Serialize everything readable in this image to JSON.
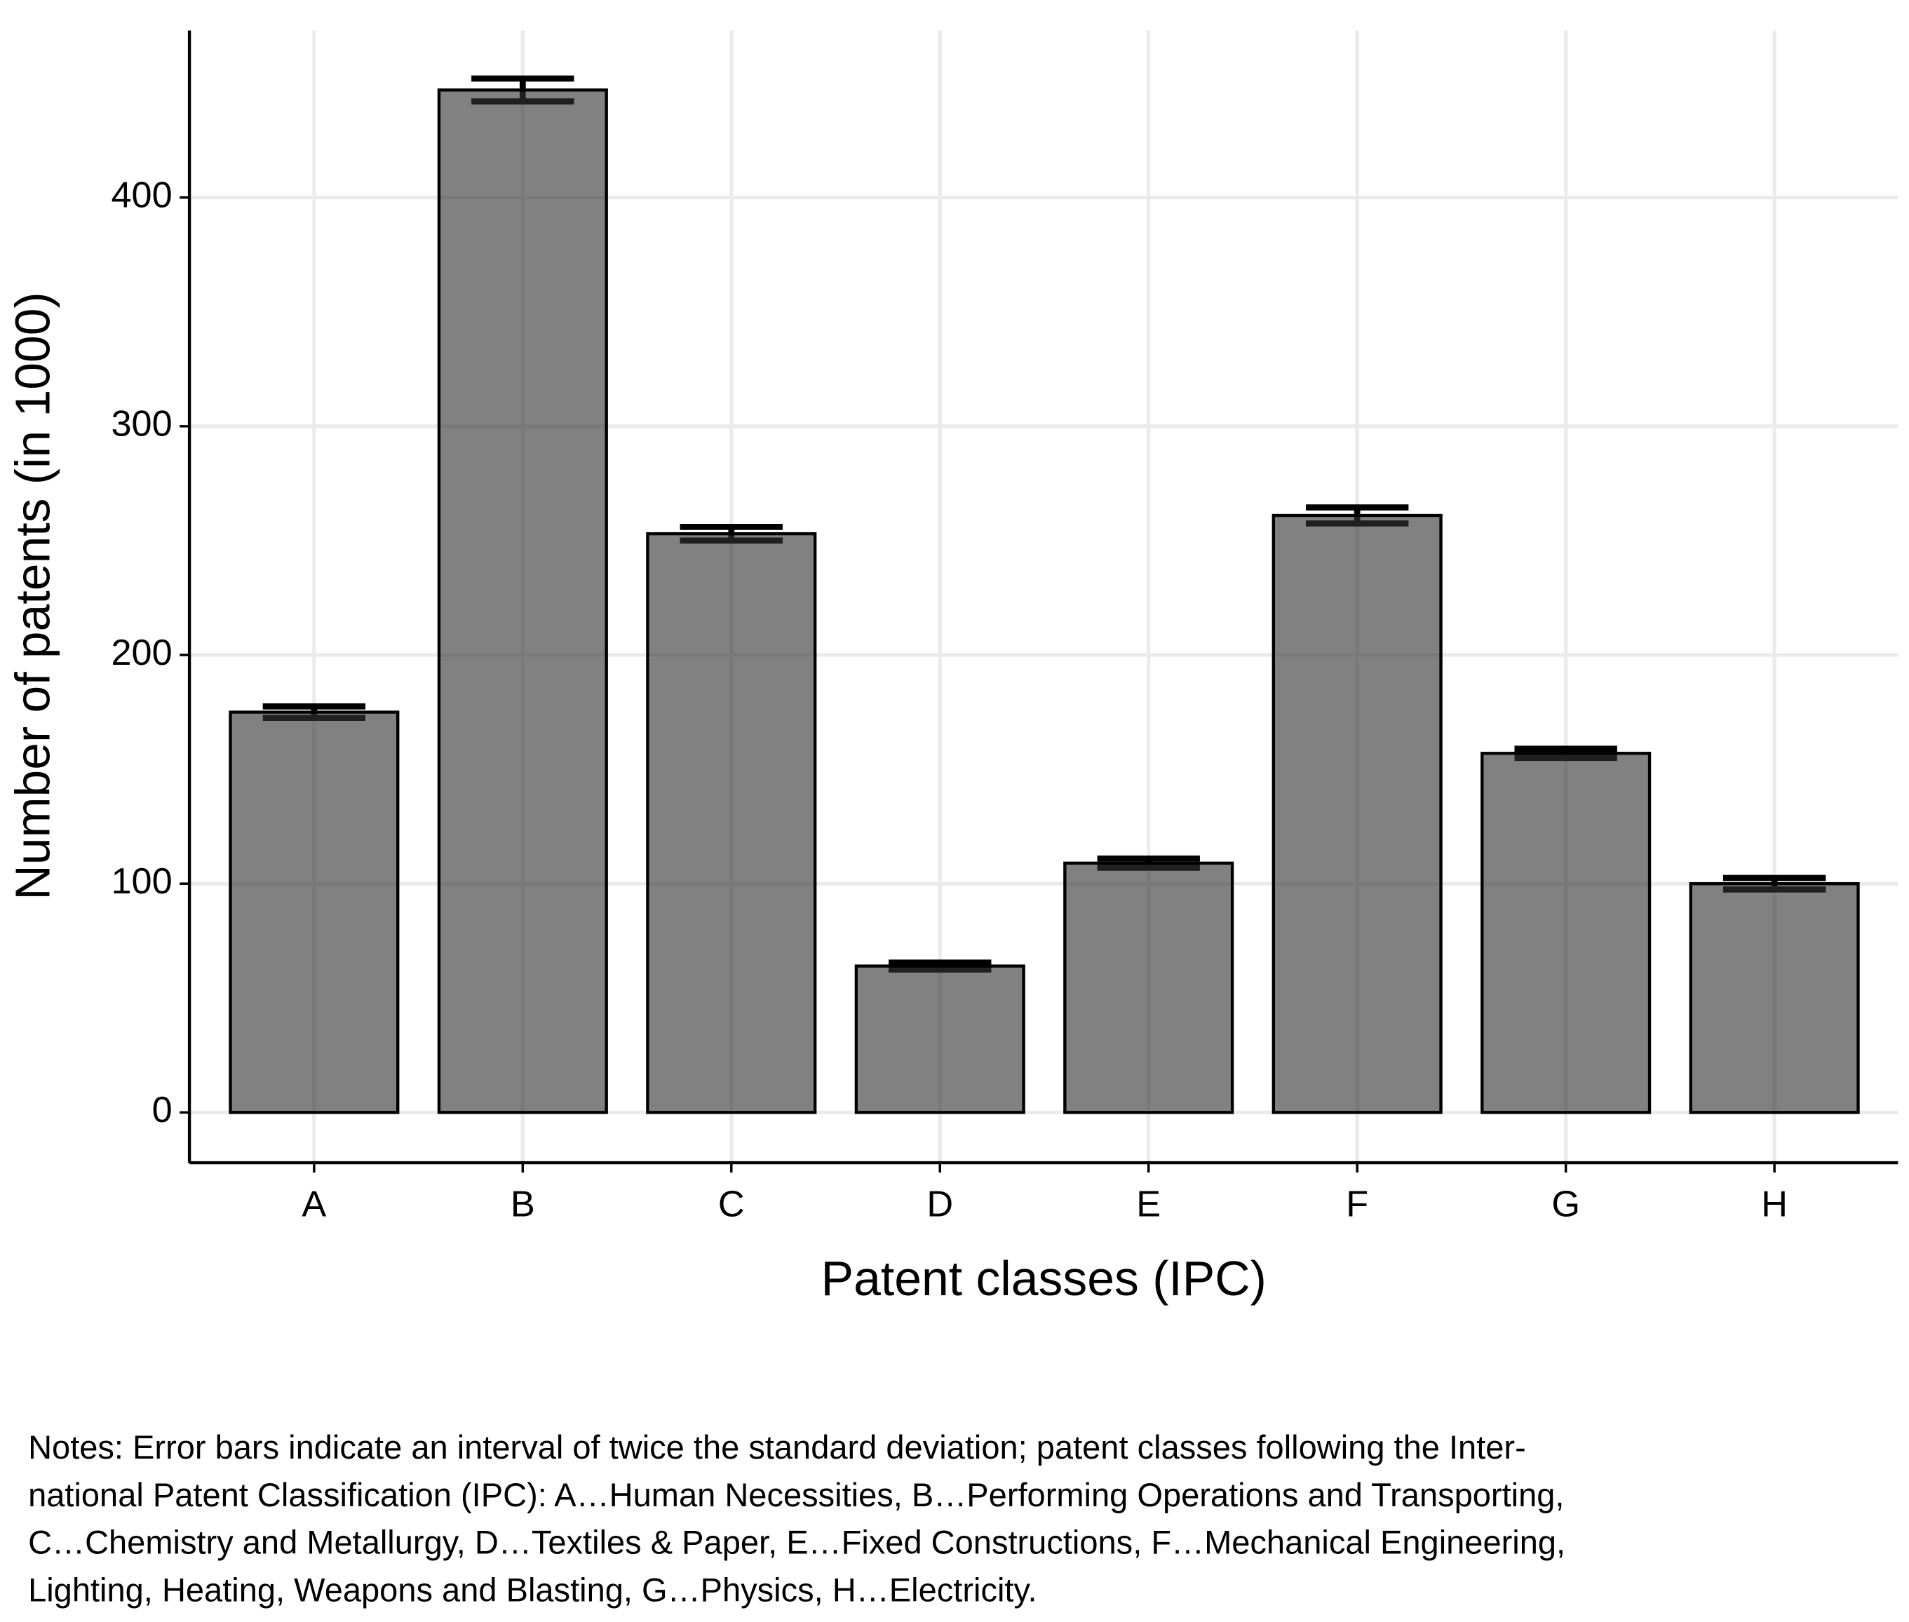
{
  "chart_data": {
    "type": "bar",
    "xlabel": "Patent classes (IPC)",
    "ylabel": "Number of patents (in 1000)",
    "categories": [
      "A",
      "B",
      "C",
      "D",
      "E",
      "F",
      "G",
      "H"
    ],
    "values": [
      175,
      447,
      253,
      64,
      109,
      261,
      157,
      100
    ],
    "errors": [
      2.5,
      5,
      3,
      1.5,
      2,
      3.5,
      2,
      2.5
    ],
    "color": "#333333",
    "ylim": [
      -22,
      473
    ],
    "yticks": [
      0,
      100,
      200,
      300,
      400
    ],
    "grid": true,
    "notes": [
      "Notes: Error bars indicate an interval of twice the standard deviation; patent classes following the Inter-",
      "national Patent Classification (IPC): A…Human Necessities, B…Performing Operations and Transporting,",
      "C…Chemistry and Metallurgy, D…Textiles & Paper, E…Fixed Constructions, F…Mechanical Engineering,",
      "Lighting, Heating, Weapons and Blasting, G…Physics, H…Electricity."
    ]
  }
}
